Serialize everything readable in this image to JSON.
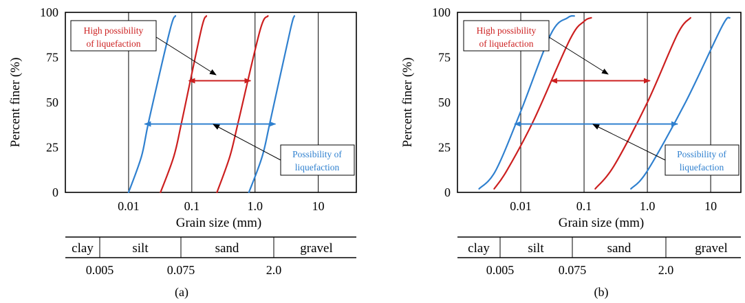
{
  "colors": {
    "red": "#cc1f1f",
    "blue": "#2f80cf",
    "black": "#000000"
  },
  "chart_data": [
    {
      "type": "line",
      "panel_label": "(a)",
      "ylabel": "Percent finer (%)",
      "xlabel": "Grain size (mm)",
      "xscale": "log",
      "xlim": [
        0.001,
        40
      ],
      "ylim": [
        0,
        100
      ],
      "xticks": [
        "0.01",
        "0.1",
        "1.0",
        "10"
      ],
      "yticks": [
        "0",
        "25",
        "50",
        "75",
        "100"
      ],
      "grid_x": [
        0.01,
        0.1,
        1.0,
        10
      ],
      "series": [
        {
          "color": "#2f80cf",
          "x": [
            0.01,
            0.016,
            0.021,
            0.045,
            0.055
          ],
          "y": [
            0,
            20,
            40,
            90,
            98
          ]
        },
        {
          "color": "#cc1f1f",
          "x": [
            0.032,
            0.052,
            0.07,
            0.14,
            0.17
          ],
          "y": [
            0,
            20,
            40,
            90,
            98
          ]
        },
        {
          "color": "#cc1f1f",
          "x": [
            0.25,
            0.4,
            0.55,
            1.2,
            1.6
          ],
          "y": [
            0,
            20,
            40,
            90,
            98
          ]
        },
        {
          "color": "#2f80cf",
          "x": [
            0.8,
            1.3,
            1.75,
            3.6,
            4.2
          ],
          "y": [
            0,
            20,
            40,
            90,
            98
          ]
        }
      ],
      "arrows": [
        {
          "color": "#cc1f1f",
          "x": [
            0.09,
            0.85
          ],
          "y": 62
        },
        {
          "color": "#2f80cf",
          "x": [
            0.018,
            2.1
          ],
          "y": 38
        }
      ],
      "callouts": [
        {
          "lines": [
            "High possibility",
            "of liquefaction"
          ],
          "color": "#cc1f1f"
        },
        {
          "lines": [
            "Possibility of",
            "liquefaction"
          ],
          "color": "#2f80cf"
        }
      ],
      "soil_table": {
        "labels": [
          "clay",
          "silt",
          "sand",
          "gravel"
        ],
        "boundaries": [
          "0.005",
          "0.075",
          "2.0"
        ]
      }
    },
    {
      "type": "line",
      "panel_label": "(b)",
      "ylabel": "Percent finer (%)",
      "xlabel": "Grain size (mm)",
      "xscale": "log",
      "xlim": [
        0.001,
        30
      ],
      "ylim": [
        0,
        100
      ],
      "xticks": [
        "0.01",
        "0.1",
        "1.0",
        "10"
      ],
      "yticks": [
        "0",
        "25",
        "50",
        "75",
        "100"
      ],
      "grid_x": [
        0.01,
        0.1,
        1.0,
        10
      ],
      "series": [
        {
          "color": "#2f80cf",
          "x": [
            0.0022,
            0.004,
            0.01,
            0.03,
            0.055,
            0.07
          ],
          "y": [
            2,
            12,
            45,
            88,
            97,
            98
          ]
        },
        {
          "color": "#cc1f1f",
          "x": [
            0.0038,
            0.006,
            0.016,
            0.06,
            0.1,
            0.13
          ],
          "y": [
            2,
            12,
            40,
            85,
            95,
            97
          ]
        },
        {
          "color": "#cc1f1f",
          "x": [
            0.15,
            0.3,
            1.0,
            3.0,
            4.8
          ],
          "y": [
            2,
            15,
            50,
            88,
            97
          ]
        },
        {
          "color": "#2f80cf",
          "x": [
            0.55,
            1.0,
            4.0,
            15,
            20
          ],
          "y": [
            2,
            12,
            50,
            92,
            97
          ]
        }
      ],
      "arrows": [
        {
          "color": "#cc1f1f",
          "x": [
            0.03,
            1.1
          ],
          "y": 62
        },
        {
          "color": "#2f80cf",
          "x": [
            0.008,
            3.0
          ],
          "y": 38
        }
      ],
      "callouts": [
        {
          "lines": [
            "High possibility",
            "of liquefaction"
          ],
          "color": "#cc1f1f"
        },
        {
          "lines": [
            "Possibility of",
            "liquefaction"
          ],
          "color": "#2f80cf"
        }
      ],
      "soil_table": {
        "labels": [
          "clay",
          "silt",
          "sand",
          "gravel"
        ],
        "boundaries": [
          "0.005",
          "0.075",
          "2.0"
        ]
      }
    }
  ]
}
